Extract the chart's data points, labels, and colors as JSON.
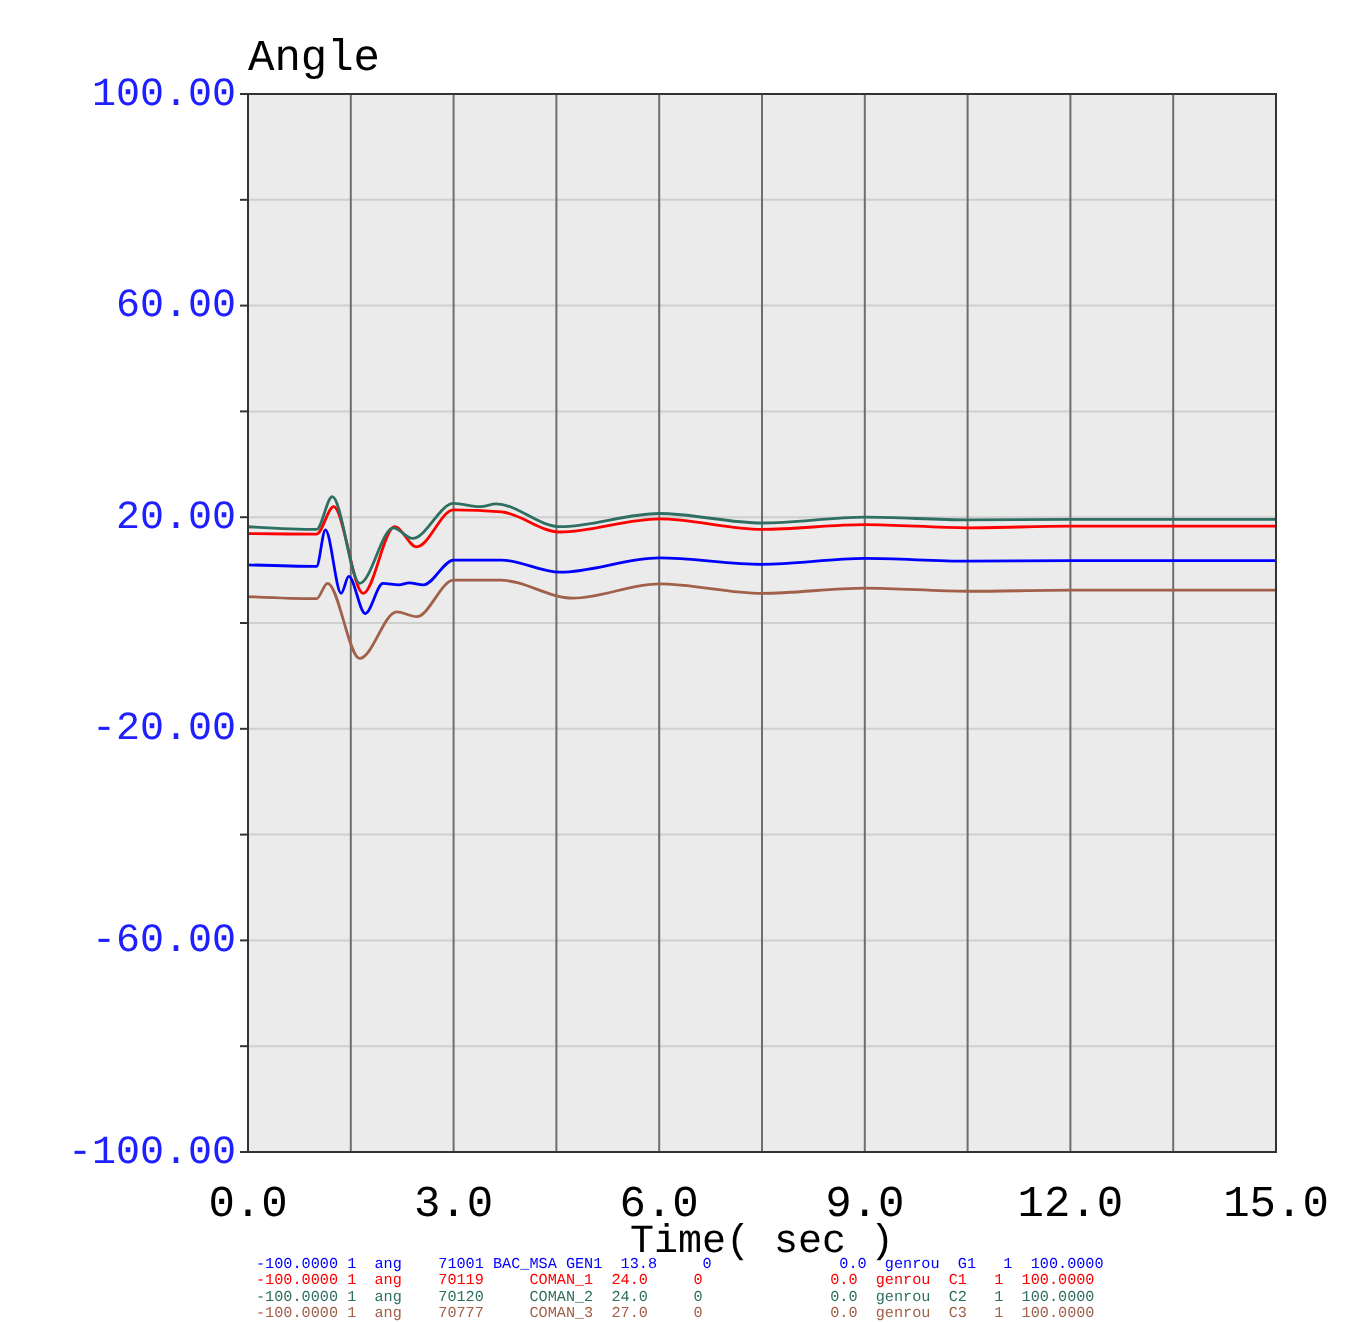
{
  "chart_data": {
    "type": "line",
    "title": "Angle",
    "xlabel": "Time( sec )",
    "xlim": [
      0,
      15
    ],
    "ylim": [
      -100,
      100
    ],
    "xticks": [
      {
        "value": 0,
        "label": "0.0"
      },
      {
        "value": 1.5,
        "label": null
      },
      {
        "value": 3,
        "label": "3.0"
      },
      {
        "value": 4.5,
        "label": null
      },
      {
        "value": 6,
        "label": "6.0"
      },
      {
        "value": 7.5,
        "label": null
      },
      {
        "value": 9,
        "label": "9.0"
      },
      {
        "value": 10.5,
        "label": null
      },
      {
        "value": 12,
        "label": "12.0"
      },
      {
        "value": 13.5,
        "label": null
      },
      {
        "value": 15,
        "label": "15.0"
      }
    ],
    "yticks": [
      {
        "value": -100,
        "label": "-100.00"
      },
      {
        "value": -80,
        "label": null
      },
      {
        "value": -60,
        "label": "-60.00"
      },
      {
        "value": -40,
        "label": null
      },
      {
        "value": -20,
        "label": "-20.00"
      },
      {
        "value": 0,
        "label": null
      },
      {
        "value": 20,
        "label": "20.00"
      },
      {
        "value": 40,
        "label": null
      },
      {
        "value": 60,
        "label": "60.00"
      },
      {
        "value": 80,
        "label": null
      },
      {
        "value": 100,
        "label": "100.00"
      }
    ],
    "grid": true,
    "legend": "bottom",
    "marker": "none",
    "line_style": "solid",
    "series": [
      {
        "name": "-100.0000 1  ang    71001 BAC_MSA GEN1  13.8     0              0.0  genrou  G1   1  100.0000",
        "color": "#0000ff",
        "x": [
          0,
          1.0,
          1.13,
          1.36,
          1.47,
          1.71,
          1.97,
          2.2,
          2.35,
          2.56,
          3.0,
          3.7,
          4.55,
          6.0,
          7.5,
          9.0,
          10.5,
          12,
          13.5,
          15
        ],
        "values": [
          11,
          10.7,
          17.6,
          5.6,
          8.8,
          1.8,
          7.5,
          7.2,
          7.6,
          7.2,
          11.9,
          11.9,
          9.6,
          12.3,
          11.1,
          12.2,
          11.7,
          11.8,
          11.8,
          11.8
        ]
      },
      {
        "name": "-100.0000 1  ang    70119     COMAN_1  24.0     0              0.0  genrou  C1   1  100.0000",
        "color": "#ff0000",
        "x": [
          0,
          1.0,
          1.25,
          1.68,
          2.14,
          2.46,
          3.0,
          3.7,
          4.55,
          6.0,
          7.5,
          9.0,
          10.5,
          12,
          13.5,
          15
        ],
        "values": [
          16.9,
          16.8,
          22,
          5.6,
          18.2,
          14.4,
          21.4,
          21,
          17.2,
          19.7,
          17.7,
          18.6,
          18,
          18.3,
          18.3,
          18.3
        ]
      },
      {
        "name": "-100.0000 1  ang    70120     COMAN_2  24.0     0              0.0  genrou  C2   1  100.0000",
        "color": "#2f6f62",
        "x": [
          0,
          1.0,
          1.23,
          1.63,
          2.12,
          2.4,
          3.0,
          3.39,
          3.62,
          4.55,
          6.0,
          7.5,
          9.0,
          10.5,
          12,
          13.5,
          15
        ],
        "values": [
          18.2,
          17.7,
          23.9,
          7.5,
          18,
          16,
          22.6,
          22,
          22.5,
          18.2,
          20.7,
          18.9,
          20,
          19.5,
          19.6,
          19.6,
          19.6
        ]
      },
      {
        "name": "-100.0000 1  ang    70777     COMAN_3  27.0     0              0.0  genrou  C3   1  100.0000",
        "color": "#a0604a",
        "x": [
          0,
          1.0,
          1.16,
          1.63,
          2.17,
          2.46,
          3.0,
          3.68,
          4.74,
          6.0,
          7.5,
          9.0,
          10.5,
          12,
          13.5,
          15
        ],
        "values": [
          5,
          4.6,
          7.5,
          -6.7,
          2.1,
          1.2,
          8.1,
          8.1,
          4.7,
          7.4,
          5.6,
          6.6,
          6,
          6.2,
          6.2,
          6.2
        ]
      }
    ]
  }
}
